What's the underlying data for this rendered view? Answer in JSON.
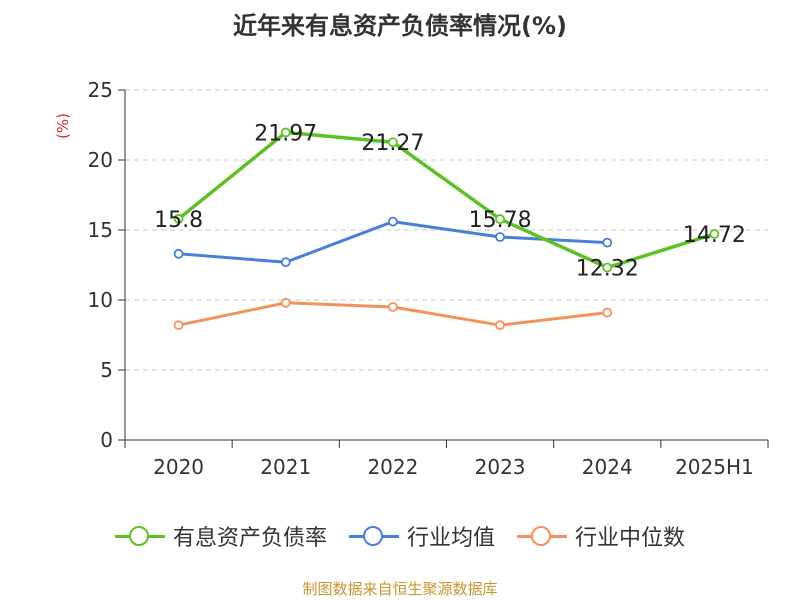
{
  "page": {
    "title": "近年来有息资产负债率情况(%)",
    "source": "制图数据来自恒生聚源数据库"
  },
  "chart_data": {
    "type": "line",
    "title": "近年来有息资产负债率情况(%)",
    "ylabel": "(%)",
    "xlabel": "",
    "categories": [
      "2020",
      "2021",
      "2022",
      "2023",
      "2024",
      "2025H1"
    ],
    "ylim": [
      0,
      25
    ],
    "yticks": [
      0,
      5,
      10,
      15,
      20,
      25
    ],
    "grid": true,
    "legend_position": "bottom",
    "series": [
      {
        "name": "有息资产负债率",
        "color": "#5cc223",
        "values": [
          15.8,
          21.97,
          21.27,
          15.78,
          12.32,
          14.72
        ],
        "labels": [
          "15.8",
          "21.97",
          "21.27",
          "15.78",
          "12.32",
          "14.72"
        ]
      },
      {
        "name": "行业均值",
        "color": "#4a7fd8",
        "values": [
          13.3,
          12.7,
          15.6,
          14.5,
          14.1,
          null
        ]
      },
      {
        "name": "行业中位数",
        "color": "#f4925b",
        "values": [
          8.2,
          9.8,
          9.5,
          8.2,
          9.1,
          null
        ]
      }
    ]
  }
}
